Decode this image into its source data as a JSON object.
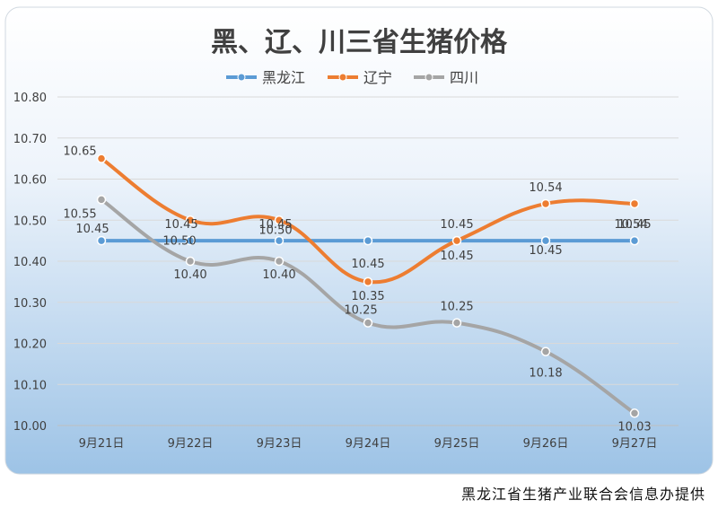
{
  "chart_data": {
    "type": "line",
    "title": "黑、辽、川三省生猪价格",
    "categories": [
      "9月21日",
      "9月22日",
      "9月23日",
      "9月24日",
      "9月25日",
      "9月26日",
      "9月27日"
    ],
    "series": [
      {
        "name": "黑龙江",
        "color": "#5B9BD5",
        "values": [
          10.45,
          10.45,
          10.45,
          10.45,
          10.45,
          10.45,
          10.45
        ],
        "labels": [
          "10.45",
          "10.45",
          "10.45",
          "10.45",
          "10.45",
          "10.45",
          "10.45"
        ]
      },
      {
        "name": "辽宁",
        "color": "#ED7D31",
        "values": [
          10.65,
          10.5,
          10.5,
          10.35,
          10.45,
          10.54,
          10.54
        ],
        "labels": [
          "10.65",
          "10.50",
          "10.50",
          "10.35",
          "10.45",
          "10.54",
          "10.54"
        ]
      },
      {
        "name": "四川",
        "color": "#A5A5A5",
        "values": [
          10.55,
          10.4,
          10.4,
          10.25,
          10.25,
          10.18,
          10.03
        ],
        "labels": [
          "10.55",
          "10.40",
          "10.40",
          "10.25",
          "10.25",
          "10.18",
          "10.03"
        ]
      }
    ],
    "yticks": [
      "10.00",
      "10.10",
      "10.20",
      "10.30",
      "10.40",
      "10.50",
      "10.60",
      "10.70",
      "10.80"
    ],
    "ylim": [
      10.0,
      10.8
    ],
    "grid": true,
    "legend": "top-center",
    "smooth": true
  },
  "footer": {
    "text": "黑龙江省生猪产业联合会信息办提供"
  }
}
